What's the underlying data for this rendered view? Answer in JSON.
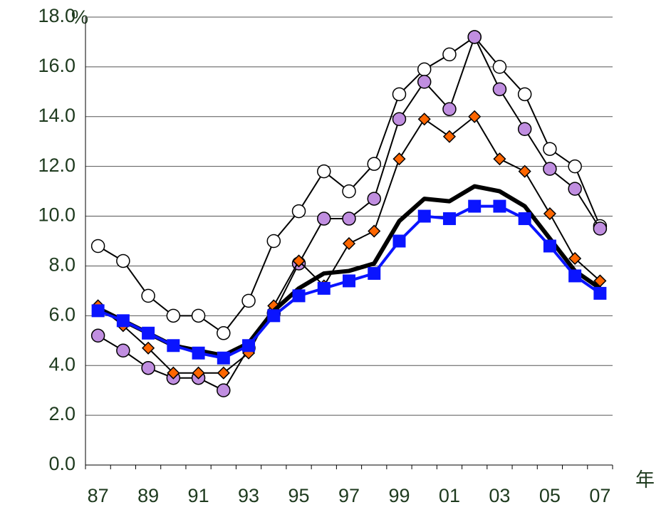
{
  "chart_data": {
    "type": "line",
    "y_unit": "%",
    "x_unit": "年",
    "categories": [
      "87",
      null,
      "89",
      null,
      "91",
      null,
      "93",
      null,
      "95",
      null,
      "97",
      null,
      "99",
      null,
      "01",
      null,
      "03",
      null,
      "05",
      null,
      "07"
    ],
    "ylim": [
      0,
      18
    ],
    "yticks": [
      {
        "value": 0,
        "label": "0.0"
      },
      {
        "value": 2,
        "label": "2.0"
      },
      {
        "value": 4,
        "label": "4.0"
      },
      {
        "value": 6,
        "label": "6.0"
      },
      {
        "value": 8,
        "label": "8.0"
      },
      {
        "value": 10,
        "label": "10.0"
      },
      {
        "value": 12,
        "label": "12.0"
      },
      {
        "value": 14,
        "label": "14.0"
      },
      {
        "value": 16,
        "label": "16.0"
      },
      {
        "value": 18,
        "label": "18.0"
      }
    ],
    "grid": true,
    "series": [
      {
        "color": "#ffffff",
        "line_color": "#000000",
        "marker": "circle",
        "line_width": 2,
        "values": [
          8.8,
          8.2,
          6.8,
          6.0,
          6.0,
          5.3,
          6.6,
          9.0,
          10.2,
          11.8,
          11.0,
          12.1,
          14.9,
          15.9,
          16.5,
          17.2,
          16.0,
          14.9,
          12.7,
          12.0,
          9.6
        ]
      },
      {
        "color": "#c08ee0",
        "line_color": "#000000",
        "marker": "circle",
        "line_width": 2,
        "values": [
          5.2,
          4.6,
          3.9,
          3.5,
          3.5,
          3.0,
          4.7,
          6.1,
          8.1,
          9.9,
          9.9,
          10.7,
          13.9,
          15.4,
          14.3,
          17.2,
          15.1,
          13.5,
          11.9,
          11.1,
          9.5
        ]
      },
      {
        "color": "#ff6600",
        "line_color": "#000000",
        "marker": "diamond",
        "line_width": 2,
        "values": [
          6.4,
          5.6,
          4.7,
          3.7,
          3.7,
          3.7,
          4.5,
          6.4,
          8.2,
          7.2,
          8.9,
          9.4,
          12.3,
          13.9,
          13.2,
          14.0,
          12.3,
          11.8,
          10.1,
          8.3,
          7.4
        ]
      },
      {
        "color": "#000000",
        "line_color": "#000000",
        "marker": "none",
        "line_width": 6,
        "values": [
          6.3,
          5.8,
          5.3,
          4.8,
          4.6,
          4.4,
          4.9,
          6.2,
          7.1,
          7.7,
          7.8,
          8.1,
          9.8,
          10.7,
          10.6,
          11.2,
          11.0,
          10.4,
          9.1,
          7.8,
          7.1
        ]
      },
      {
        "color": "#0a14ff",
        "line_color": "#0a14ff",
        "marker": "square",
        "line_width": 4,
        "values": [
          6.2,
          5.8,
          5.3,
          4.8,
          4.5,
          4.3,
          4.8,
          6.0,
          6.8,
          7.1,
          7.4,
          7.7,
          9.0,
          10.0,
          9.9,
          10.4,
          10.4,
          9.9,
          8.8,
          7.6,
          6.9
        ]
      }
    ]
  }
}
